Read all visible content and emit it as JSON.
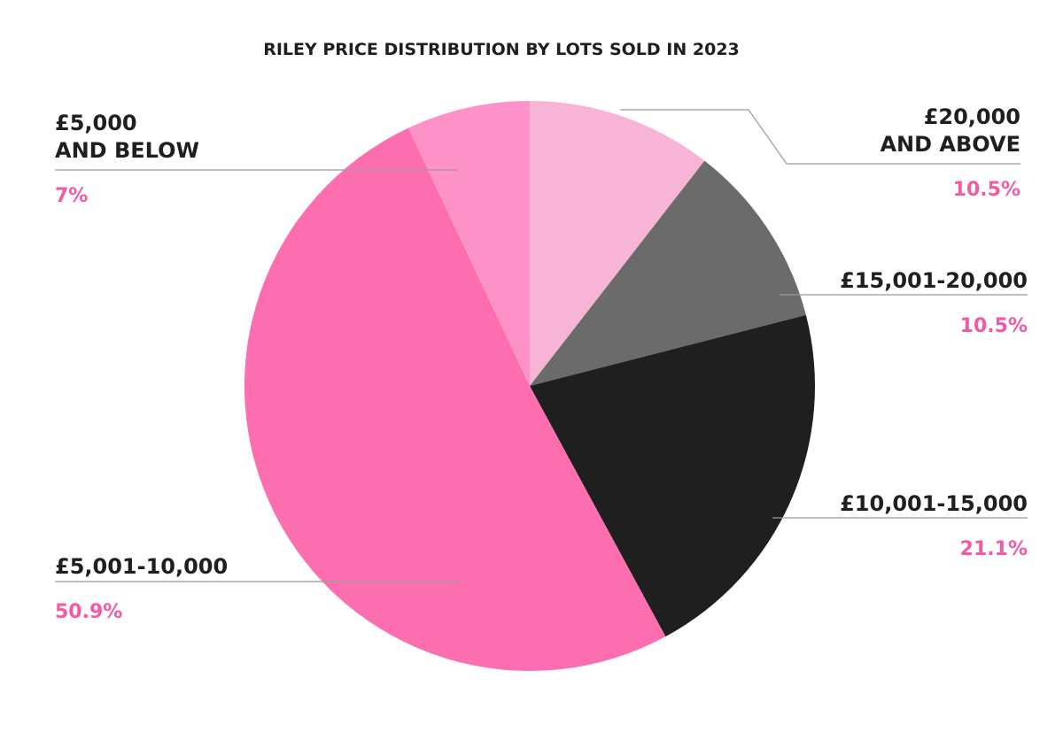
{
  "chart_data": {
    "type": "pie",
    "title": "RILEY PRICE DISTRIBUTION BY LOTS SOLD IN 2023",
    "slices": [
      {
        "label_lines": [
          "£20,000",
          "AND ABOVE"
        ],
        "value": 10.5,
        "value_label": "10.5%",
        "color": "#f7b4d6"
      },
      {
        "label_lines": [
          "£15,001-20,000"
        ],
        "value": 10.5,
        "value_label": "10.5%",
        "color": "#6b6b6b"
      },
      {
        "label_lines": [
          "£10,001-15,000"
        ],
        "value": 21.1,
        "value_label": "21.1%",
        "color": "#1f1f1f"
      },
      {
        "label_lines": [
          "£5,001-10,000"
        ],
        "value": 50.9,
        "value_label": "50.9%",
        "color": "#fc6eb0"
      },
      {
        "label_lines": [
          "£5,000",
          "AND BELOW"
        ],
        "value": 7,
        "value_label": "7%",
        "color": "#fd92c8"
      }
    ],
    "value_label_color": "#f25aa4",
    "legend": "none"
  }
}
